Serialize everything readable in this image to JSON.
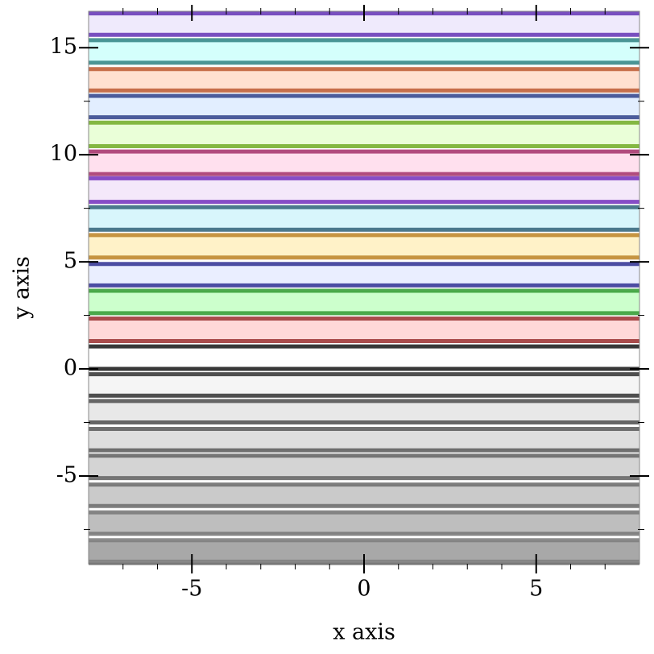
{
  "chart_data": {
    "type": "band",
    "xlabel": "x axis",
    "ylabel": "y axis",
    "xlim": [
      -8,
      8
    ],
    "ylim": [
      -9.1,
      16.7
    ],
    "xticks": [
      -5,
      0,
      5
    ],
    "yticks": [
      -5,
      0,
      5,
      10,
      15
    ],
    "xminorticks": [
      -7,
      -6,
      -4,
      -3,
      -2,
      -1,
      1,
      2,
      3,
      4,
      6,
      7
    ],
    "yminorticks": [
      -7.5,
      -2.5,
      2.5,
      7.5,
      12.5
    ],
    "series": [
      {
        "color": "#6a3db8",
        "fill": "#efeafc",
        "values": [
          15.6,
          16.6
        ]
      },
      {
        "color": "#3a8a8a",
        "fill": "#d4fffc",
        "values": [
          14.3,
          15.35
        ]
      },
      {
        "color": "#c0603a",
        "fill": "#ffe0d0",
        "values": [
          13.0,
          14.0
        ]
      },
      {
        "color": "#3a4a90",
        "fill": "#e2eeff",
        "values": [
          11.75,
          12.75
        ]
      },
      {
        "color": "#78b030",
        "fill": "#eaffd8",
        "values": [
          10.4,
          11.5
        ]
      },
      {
        "color": "#a83a70",
        "fill": "#ffe0ee",
        "values": [
          9.1,
          10.15
        ]
      },
      {
        "color": "#7a3ac0",
        "fill": "#f4e8fa",
        "values": [
          7.8,
          8.9
        ]
      },
      {
        "color": "#3a6a80",
        "fill": "#d8f6fc",
        "values": [
          6.5,
          7.55
        ]
      },
      {
        "color": "#c08a30",
        "fill": "#fff2c8",
        "values": [
          5.2,
          6.25
        ]
      },
      {
        "color": "#3a3a98",
        "fill": "#eaeeff",
        "values": [
          3.9,
          4.9
        ]
      },
      {
        "color": "#3aa03a",
        "fill": "#ccffcc",
        "values": [
          2.6,
          3.65
        ]
      },
      {
        "color": "#a03a3a",
        "fill": "#ffd8d8",
        "values": [
          1.3,
          2.35
        ]
      },
      {
        "color": "#222222",
        "fill": "#ffffff",
        "values": [
          0,
          1.05
        ]
      },
      {
        "color": "#3c3c3c",
        "fill": "#f5f5f5",
        "values": [
          -1.25,
          -0.25
        ]
      },
      {
        "color": "#555555",
        "fill": "#e8e8e8",
        "values": [
          -2.5,
          -1.5
        ]
      },
      {
        "color": "#606060",
        "fill": "#dedede",
        "values": [
          -3.8,
          -2.8
        ]
      },
      {
        "color": "#686868",
        "fill": "#d4d4d4",
        "values": [
          -5.1,
          -4.05
        ]
      },
      {
        "color": "#707070",
        "fill": "#cacaca",
        "values": [
          -6.4,
          -5.4
        ]
      },
      {
        "color": "#7a7a7a",
        "fill": "#bebebe",
        "values": [
          -7.7,
          -6.7
        ]
      },
      {
        "color": "#808080",
        "fill": "#a8a8a8",
        "values": [
          -9.0,
          -8.0
        ]
      }
    ]
  }
}
